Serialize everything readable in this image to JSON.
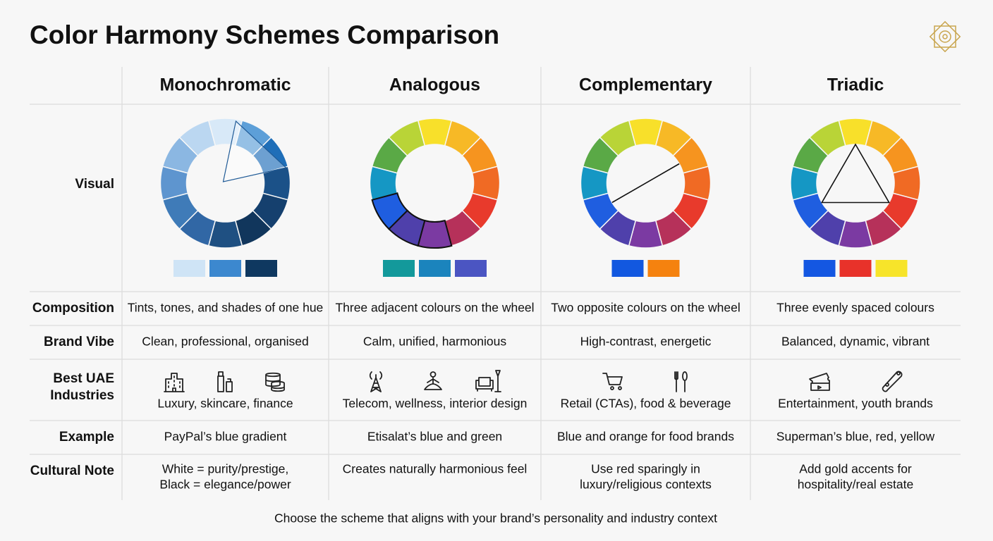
{
  "title": "Color Harmony Schemes Comparison",
  "columns": [
    "Monochromatic",
    "Analogous",
    "Complementary",
    "Triadic"
  ],
  "visual_label": "Visual",
  "rows": [
    {
      "label": [
        "Composition"
      ],
      "cells": [
        [
          "Tints, tones, and shades of one hue"
        ],
        [
          "Three adjacent colours on the wheel"
        ],
        [
          "Two opposite colours on the wheel"
        ],
        [
          "Three evenly spaced colours"
        ]
      ]
    },
    {
      "label": [
        "Brand Vibe"
      ],
      "cells": [
        [
          "Clean, professional, organised"
        ],
        [
          "Calm, unified, harmonious"
        ],
        [
          "High-contrast, energetic"
        ],
        [
          "Balanced, dynamic, vibrant"
        ]
      ]
    },
    {
      "label": [
        "Best UAE",
        "Industries"
      ],
      "cells": [
        [
          "Luxury, skincare, finance"
        ],
        [
          "Telecom, wellness, interior design"
        ],
        [
          "Retail (CTAs), food & beverage"
        ],
        [
          "Entertainment, youth brands"
        ]
      ]
    },
    {
      "label": [
        "Example"
      ],
      "cells": [
        [
          "PayPal’s blue gradient"
        ],
        [
          "Etisalat’s blue and green"
        ],
        [
          "Blue and orange for food brands"
        ],
        [
          "Superman’s blue, red, yellow"
        ]
      ]
    },
    {
      "label": [
        "Cultural Note"
      ],
      "cells": [
        [
          "White = purity/prestige,",
          "Black = elegance/power"
        ],
        [
          "Creates naturally harmonious feel"
        ],
        [
          "Use red sparingly in",
          "luxury/religious contexts"
        ],
        [
          "Add gold accents for",
          "hospitality/real estate"
        ]
      ]
    }
  ],
  "footer": "Choose the scheme that aligns with your brand’s personality and industry context"
}
